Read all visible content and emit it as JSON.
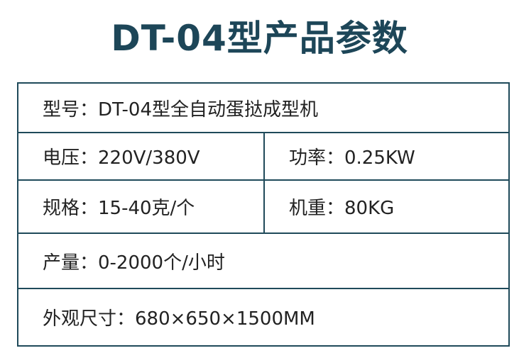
{
  "title": "DT-04型产品参数",
  "rows": [
    {
      "cells": [
        "型号：DT-04型全自动蛋挞成型机"
      ]
    },
    {
      "cells": [
        "电压：220V/380V",
        "功率：0.25KW"
      ]
    },
    {
      "cells": [
        "规格：15-40克/个",
        "机重：80KG"
      ]
    },
    {
      "cells": [
        "产量：0-2000个/小时"
      ]
    },
    {
      "cells": [
        "外观尺寸：680×650×1500MM"
      ]
    }
  ],
  "colors": {
    "title": "#1d4658",
    "border": "#1f4a5a"
  }
}
